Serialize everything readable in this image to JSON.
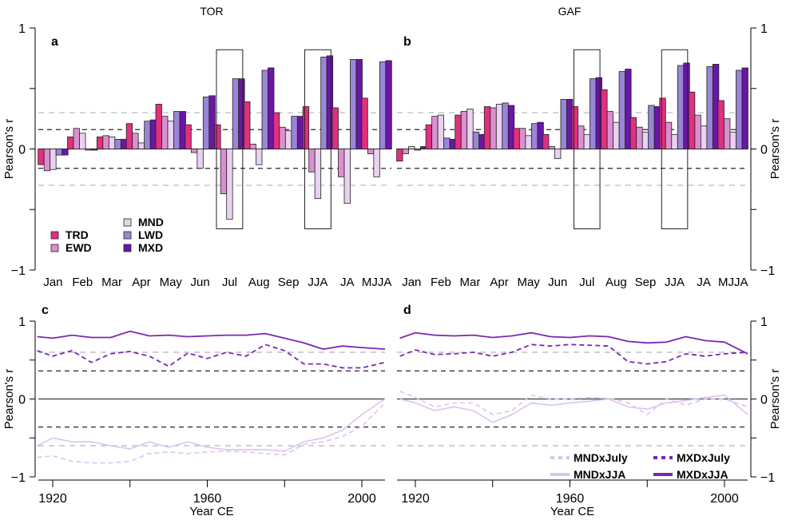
{
  "colors": {
    "TRD": "#e0307e",
    "EWD": "#dc8fd0",
    "MND": "#e8d2f0",
    "LWD": "#9a86d6",
    "MXD": "#6a16a6",
    "MND_line": "#dcc3f0",
    "MXD_line": "#7a28b4",
    "sig95": "#000000",
    "sig99": "#b3b3b3"
  },
  "chart_data": [
    {
      "panel": "a",
      "type": "bar",
      "title": "TOR",
      "ylabel": "Pearson's r",
      "ylim": [
        -1,
        1
      ],
      "yticks": [
        -1,
        -0.5,
        0,
        0.5,
        1
      ],
      "ytick_labels": [
        "−1",
        "",
        "0",
        "",
        "1"
      ],
      "axis_side": "left",
      "significance_lines": [
        0.16,
        0.3,
        -0.16,
        -0.3
      ],
      "highlight_boxes": [
        "Jul",
        "JJA"
      ],
      "categories": [
        "Jan",
        "Feb",
        "Mar",
        "Apr",
        "May",
        "Jun",
        "Jul",
        "Aug",
        "Sep",
        "JJA",
        "JA",
        "MJJA"
      ],
      "series": [
        {
          "name": "TRD",
          "values": [
            -0.13,
            0.1,
            0.1,
            0.21,
            0.37,
            0.2,
            0.2,
            0.39,
            0.3,
            0.35,
            0.34,
            0.42
          ]
        },
        {
          "name": "EWD",
          "values": [
            -0.18,
            0.17,
            0.11,
            0.13,
            0.27,
            -0.03,
            -0.37,
            0.04,
            0.18,
            -0.19,
            -0.23,
            -0.04
          ]
        },
        {
          "name": "MND",
          "values": [
            -0.17,
            0.13,
            0.1,
            0.05,
            0.23,
            -0.16,
            -0.58,
            -0.13,
            0.15,
            -0.41,
            -0.45,
            -0.23
          ]
        },
        {
          "name": "LWD",
          "values": [
            -0.05,
            -0.01,
            0.08,
            0.23,
            0.31,
            0.43,
            0.58,
            0.65,
            0.27,
            0.76,
            0.74,
            0.72
          ]
        },
        {
          "name": "MXD",
          "values": [
            -0.05,
            -0.01,
            0.08,
            0.24,
            0.31,
            0.44,
            0.58,
            0.67,
            0.27,
            0.77,
            0.74,
            0.73
          ]
        }
      ],
      "legend": {
        "placement": "bottom-left",
        "entries": [
          "TRD",
          "EWD",
          "MND",
          "LWD",
          "MXD"
        ]
      }
    },
    {
      "panel": "b",
      "type": "bar",
      "title": "GAF",
      "ylabel": "Pearson's r",
      "ylim": [
        -1,
        1
      ],
      "yticks": [
        -1,
        -0.5,
        0,
        0.5,
        1
      ],
      "ytick_labels": [
        "−1",
        "",
        "0",
        "",
        "1"
      ],
      "axis_side": "right",
      "significance_lines": [
        0.16,
        0.3,
        -0.16,
        -0.3
      ],
      "highlight_boxes": [
        "Jul",
        "JJA"
      ],
      "categories": [
        "Jan",
        "Feb",
        "Mar",
        "Apr",
        "May",
        "Jun",
        "Jul",
        "Aug",
        "Sep",
        "JJA",
        "JA",
        "MJJA"
      ],
      "series": [
        {
          "name": "TRD",
          "values": [
            -0.1,
            0.2,
            0.28,
            0.35,
            0.17,
            0.12,
            0.35,
            0.49,
            0.26,
            0.42,
            0.47,
            0.4
          ]
        },
        {
          "name": "EWD",
          "values": [
            -0.04,
            0.27,
            0.31,
            0.34,
            0.17,
            0.02,
            0.19,
            0.31,
            0.18,
            0.22,
            0.28,
            0.25
          ]
        },
        {
          "name": "MND",
          "values": [
            0.02,
            0.28,
            0.33,
            0.37,
            0.11,
            -0.08,
            0.12,
            0.22,
            0.14,
            0.12,
            0.19,
            0.14
          ]
        },
        {
          "name": "LWD",
          "values": [
            -0.01,
            0.09,
            0.14,
            0.38,
            0.21,
            0.41,
            0.58,
            0.64,
            0.36,
            0.69,
            0.68,
            0.65
          ]
        },
        {
          "name": "MXD",
          "values": [
            0.02,
            0.08,
            0.12,
            0.36,
            0.22,
            0.41,
            0.59,
            0.66,
            0.35,
            0.71,
            0.7,
            0.67
          ]
        }
      ]
    },
    {
      "panel": "c",
      "type": "line",
      "title": "",
      "xlabel": "Year CE",
      "ylabel": "Pearson's r",
      "xlim": [
        1913,
        2007
      ],
      "xticks": [
        1920,
        1940,
        1960,
        1980,
        2000
      ],
      "xtick_labels": [
        "1920",
        "",
        "1960",
        "",
        "2000"
      ],
      "ylim": [
        -1,
        1
      ],
      "yticks": [
        -1,
        -0.5,
        0,
        0.5,
        1
      ],
      "ytick_labels": [
        "−1",
        "",
        "0",
        "",
        "1"
      ],
      "axis_side": "left",
      "significance_lines": [
        0.36,
        0.6,
        -0.36,
        -0.6
      ],
      "x": [
        1916,
        1920,
        1925,
        1930,
        1935,
        1940,
        1945,
        1950,
        1955,
        1960,
        1965,
        1970,
        1975,
        1980,
        1985,
        1990,
        1995,
        2000,
        2006
      ],
      "series": [
        {
          "name": "MXDxJJA",
          "style": "solid",
          "values": [
            0.8,
            0.78,
            0.82,
            0.79,
            0.79,
            0.87,
            0.81,
            0.82,
            0.8,
            0.81,
            0.82,
            0.82,
            0.84,
            0.78,
            0.72,
            0.64,
            0.68,
            0.66,
            0.64
          ]
        },
        {
          "name": "MXDxJuly",
          "style": "dashed",
          "values": [
            0.62,
            0.55,
            0.62,
            0.47,
            0.58,
            0.61,
            0.55,
            0.42,
            0.59,
            0.52,
            0.6,
            0.55,
            0.7,
            0.62,
            0.45,
            0.45,
            0.4,
            0.4,
            0.47
          ]
        },
        {
          "name": "MNDxJJA",
          "style": "solid",
          "values": [
            -0.6,
            -0.5,
            -0.55,
            -0.55,
            -0.6,
            -0.64,
            -0.55,
            -0.62,
            -0.55,
            -0.62,
            -0.65,
            -0.65,
            -0.65,
            -0.67,
            -0.55,
            -0.5,
            -0.4,
            -0.2,
            0.0
          ]
        },
        {
          "name": "MNDxJuly",
          "style": "dashed",
          "values": [
            -0.75,
            -0.73,
            -0.8,
            -0.82,
            -0.82,
            -0.8,
            -0.7,
            -0.68,
            -0.7,
            -0.68,
            -0.67,
            -0.68,
            -0.7,
            -0.72,
            -0.58,
            -0.55,
            -0.48,
            -0.35,
            -0.05
          ]
        }
      ]
    },
    {
      "panel": "d",
      "type": "line",
      "title": "",
      "xlabel": "Year CE",
      "ylabel": "Pearson's r",
      "xlim": [
        1913,
        2007
      ],
      "xticks": [
        1920,
        1940,
        1960,
        1980,
        2000
      ],
      "xtick_labels": [
        "1920",
        "",
        "1960",
        "",
        "2000"
      ],
      "ylim": [
        -1,
        1
      ],
      "yticks": [
        -1,
        -0.5,
        0,
        0.5,
        1
      ],
      "ytick_labels": [
        "−1",
        "",
        "0",
        "",
        "1"
      ],
      "axis_side": "right",
      "significance_lines": [
        0.36,
        0.6,
        -0.36,
        -0.6
      ],
      "x": [
        1916,
        1920,
        1925,
        1930,
        1935,
        1940,
        1945,
        1950,
        1955,
        1960,
        1965,
        1970,
        1975,
        1980,
        1985,
        1990,
        1995,
        2000,
        2006
      ],
      "series": [
        {
          "name": "MXDxJJA",
          "style": "solid",
          "values": [
            0.78,
            0.85,
            0.82,
            0.81,
            0.82,
            0.79,
            0.81,
            0.85,
            0.8,
            0.79,
            0.81,
            0.8,
            0.74,
            0.72,
            0.73,
            0.8,
            0.75,
            0.73,
            0.58
          ]
        },
        {
          "name": "MXDxJuly",
          "style": "dashed",
          "values": [
            0.55,
            0.63,
            0.57,
            0.58,
            0.6,
            0.55,
            0.6,
            0.7,
            0.68,
            0.7,
            0.69,
            0.68,
            0.48,
            0.45,
            0.48,
            0.58,
            0.55,
            0.58,
            0.6
          ]
        },
        {
          "name": "MNDxJJA",
          "style": "solid",
          "values": [
            0.0,
            -0.05,
            -0.15,
            -0.1,
            -0.15,
            -0.3,
            -0.2,
            -0.05,
            -0.08,
            -0.05,
            -0.03,
            0.0,
            -0.1,
            -0.13,
            -0.05,
            -0.02,
            0.02,
            0.05,
            -0.2
          ]
        },
        {
          "name": "MNDxJuly",
          "style": "dashed",
          "values": [
            0.1,
            0.02,
            -0.1,
            -0.05,
            -0.05,
            -0.2,
            -0.15,
            0.05,
            0.0,
            0.0,
            0.02,
            0.01,
            -0.05,
            -0.2,
            0.0,
            -0.08,
            0.0,
            0.0,
            -0.1
          ]
        }
      ],
      "legend": {
        "placement": "bottom-right",
        "entries": [
          "MNDxJuly",
          "MXDxJuly",
          "MNDxJJA",
          "MXDxJJA"
        ]
      }
    }
  ]
}
